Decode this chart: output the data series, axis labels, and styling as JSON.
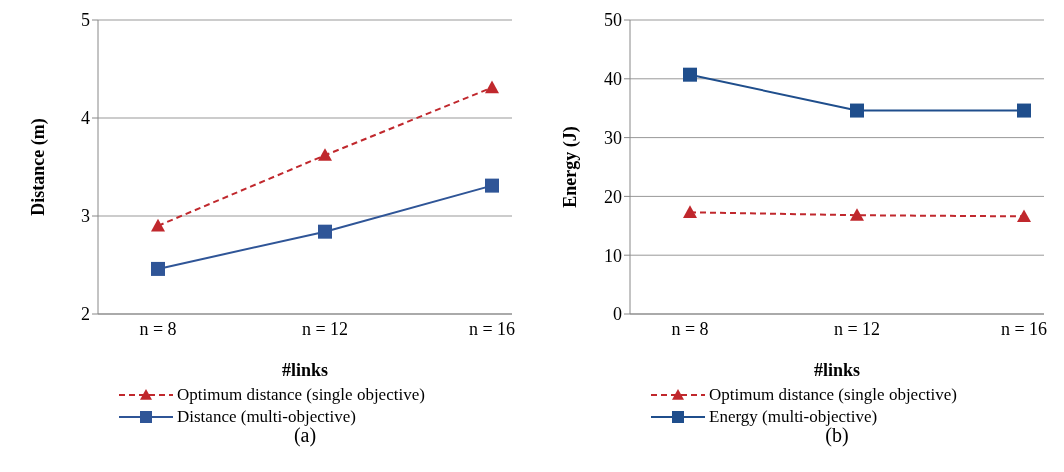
{
  "chart_data": [
    {
      "type": "line",
      "xlabel": "#links",
      "ylabel": "Distance (m)",
      "categories": [
        "n = 8",
        "n = 12",
        "n = 16"
      ],
      "series": [
        {
          "name": "Optimum distance (single objective)",
          "color": "#c0282d",
          "values": [
            2.9,
            3.62,
            4.31
          ],
          "marker": "triangle",
          "line_style": "dashed"
        },
        {
          "name": "Distance (multi-objective)",
          "color": "#2f5597",
          "values": [
            2.46,
            2.84,
            3.31
          ],
          "marker": "square",
          "line_style": "solid"
        }
      ],
      "ylim": [
        2,
        5
      ],
      "yticks": [
        2,
        3,
        4,
        5
      ],
      "grid": "y",
      "legend": "bottom",
      "annotations": [
        "(a)"
      ]
    },
    {
      "type": "line",
      "xlabel": "#links",
      "ylabel": "Energy  (J)",
      "categories": [
        "n = 8",
        "n = 12",
        "n = 16"
      ],
      "series": [
        {
          "name": "Optimum distance (single objective)",
          "color": "#c0282d",
          "values": [
            17.3,
            16.8,
            16.6
          ],
          "marker": "triangle",
          "line_style": "dashed"
        },
        {
          "name": "Energy (multi-objective)",
          "color": "#1f4e8c",
          "values": [
            40.7,
            34.6,
            34.6
          ],
          "marker": "square",
          "line_style": "solid"
        }
      ],
      "ylim": [
        0,
        50
      ],
      "yticks": [
        0,
        10,
        20,
        30,
        40,
        50
      ],
      "grid": "y",
      "legend": "bottom",
      "annotations": [
        "(b)"
      ]
    }
  ]
}
